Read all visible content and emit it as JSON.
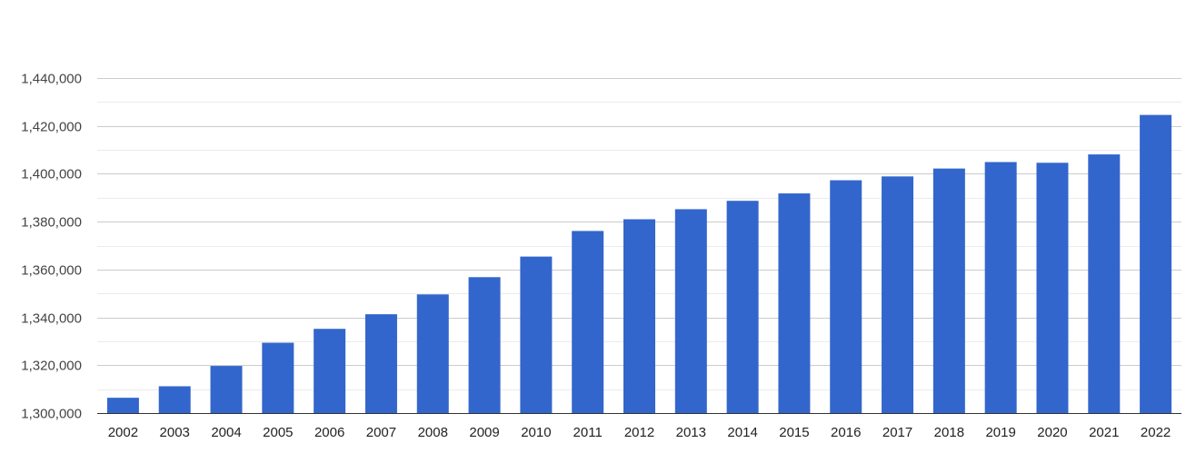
{
  "chart_data": {
    "type": "bar",
    "title": "",
    "xlabel": "",
    "ylabel": "",
    "categories": [
      "2002",
      "2003",
      "2004",
      "2005",
      "2006",
      "2007",
      "2008",
      "2009",
      "2010",
      "2011",
      "2012",
      "2013",
      "2014",
      "2015",
      "2016",
      "2017",
      "2018",
      "2019",
      "2020",
      "2021",
      "2022"
    ],
    "values": [
      1306400,
      1311200,
      1319700,
      1329400,
      1335200,
      1341300,
      1349600,
      1356800,
      1365400,
      1376100,
      1381000,
      1385200,
      1388700,
      1391800,
      1397300,
      1398900,
      1402200,
      1404900,
      1404600,
      1408100,
      1424600
    ],
    "ylim": [
      1300000,
      1440000
    ],
    "yticks": [
      1300000,
      1320000,
      1340000,
      1360000,
      1380000,
      1400000,
      1420000,
      1440000
    ],
    "ytick_labels": [
      "1,300,000",
      "1,320,000",
      "1,340,000",
      "1,360,000",
      "1,380,000",
      "1,400,000",
      "1,420,000",
      "1,440,000"
    ],
    "grid": true,
    "minor_grid": true,
    "legend": "none",
    "bar_color": "#3366cc",
    "grid_color": "#cccccc",
    "minor_grid_color": "#ebebeb"
  }
}
